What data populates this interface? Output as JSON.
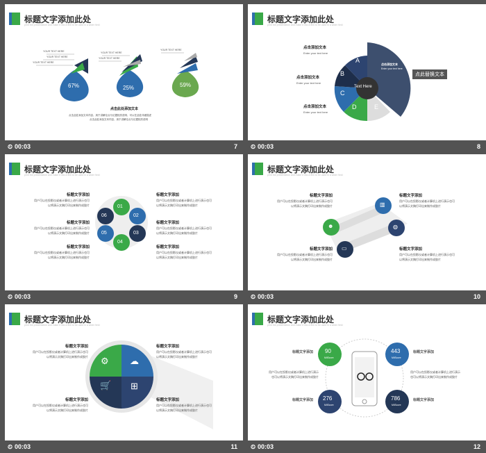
{
  "header_title": "标题文字添加此处",
  "header_sub": "print the presentation and make it into a film to be used in a wider field",
  "timer": "00:03",
  "colors": {
    "blue": "#2e6dad",
    "green": "#3aa948",
    "navy": "#243756"
  },
  "slides": {
    "s7": {
      "num": "7",
      "tag": "YOUR TEXT HERE",
      "click": "点击此处添加文本",
      "pct": [
        "67%",
        "25%",
        "59%"
      ],
      "lines": [
        "点击此处添加文本内容，用于讲解论点与论据相关说明，可以在此处详细描述",
        "点击此处添加文本内容，用于讲解论点与论据相关说明"
      ]
    },
    "s8": {
      "num": "8",
      "center": "Text Here",
      "letters": [
        "A",
        "B",
        "C",
        "D",
        "E"
      ],
      "chip": "点此替换文本",
      "lbl": "点击添加文本",
      "lblsub": "Enter your text here"
    },
    "s9": {
      "num": "9",
      "nums": [
        "01",
        "02",
        "03",
        "04",
        "05",
        "06"
      ],
      "head": "标题文字添加",
      "body": "用户可以在投影仪或者计算机上进行演示也可以将演示文稿打印出来制作成胶片"
    },
    "s10": {
      "num": "10",
      "head": "标题文字添加",
      "body": "用户可以在投影仪或者计算机上进行演示也可以将演示文稿打印出来制作成胶片"
    },
    "s11": {
      "num": "11",
      "head": "标题文字添加",
      "body": "用户可以在投影仪或者计算机上进行演示也可以将演示文稿打印出来制作成胶片"
    },
    "s12": {
      "num": "12",
      "head": "标题文字添加",
      "stats": [
        "90",
        "443",
        "276",
        "786"
      ],
      "unit": "MilScore",
      "body": "用户可以在投影仪或者计算机上进行演示也可以将演示文稿打印出来制作成胶片"
    }
  }
}
